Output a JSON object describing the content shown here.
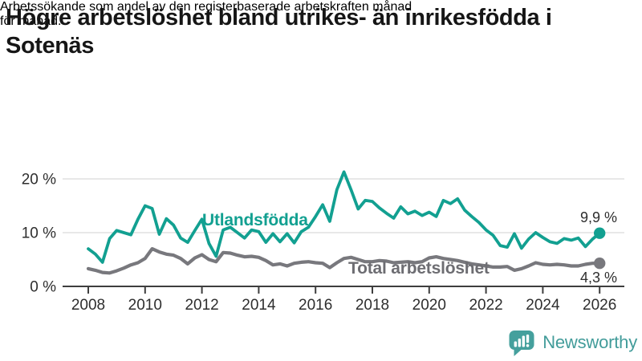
{
  "header": {
    "title": "Högre arbetslöshet bland utrikes- än inrikesfödda i Sotenäs",
    "title_lines": [
      "Högre arbetslöshet bland utrikes- än inrikesfödda i",
      "Sotenäs"
    ],
    "subtitle": "Arbetssökande som andel av den registerbaserade arbetskraften månad för månad.",
    "subtitle_lines": [
      "Arbetssökande som andel av den registerbaserade arbetskraften månad",
      "för månad."
    ]
  },
  "chart_data": {
    "type": "line",
    "title": "Högre arbetslöshet bland utrikes- än inrikesfödda i Sotenäs",
    "subtitle": "Arbetssökande som andel av den registerbaserade arbetskraften månad för månad.",
    "grid": true,
    "legend_position": "inline-labels",
    "x_axis": {
      "unit": "year",
      "tick_years": [
        2008,
        2010,
        2012,
        2014,
        2016,
        2018,
        2020,
        2022,
        2024,
        2026
      ],
      "range_years": [
        2007.1,
        2026.9
      ]
    },
    "y_axis": {
      "unit": "%",
      "ticks": [
        0,
        10,
        20
      ],
      "tick_labels": [
        "0 %",
        "10 %",
        "20 %"
      ],
      "range": [
        0,
        22
      ]
    },
    "x_start_year": 2008.0,
    "x_step_years": 0.25,
    "series": [
      {
        "name": "Utlandsfödda",
        "color": "#12a091",
        "end_value": 9.9,
        "end_label": "9,9 %",
        "values": [
          7.0,
          6.0,
          4.5,
          8.9,
          10.4,
          10.0,
          9.6,
          12.5,
          15.0,
          14.5,
          9.7,
          12.6,
          11.4,
          9.0,
          8.2,
          10.4,
          12.5,
          8.0,
          5.6,
          10.5,
          11.0,
          10.0,
          9.0,
          10.5,
          10.2,
          8.2,
          9.8,
          8.3,
          9.8,
          8.1,
          10.2,
          11.0,
          13.0,
          15.2,
          12.1,
          18.0,
          21.3,
          18.0,
          14.4,
          16.0,
          15.8,
          14.6,
          13.6,
          12.7,
          14.8,
          13.5,
          14.0,
          13.2,
          13.8,
          13.0,
          16.0,
          15.4,
          16.3,
          14.2,
          13.0,
          11.9,
          10.5,
          9.5,
          7.6,
          7.3,
          9.8,
          7.1,
          8.8,
          10.0,
          9.1,
          8.3,
          8.0,
          8.9,
          8.6,
          9.0,
          7.4,
          8.8,
          9.9
        ]
      },
      {
        "name": "Total arbetslöshet",
        "color": "#78787d",
        "label_color": "#6d6d72",
        "end_value": 4.3,
        "end_label": "4,3 %",
        "values": [
          3.3,
          3.0,
          2.6,
          2.5,
          2.9,
          3.4,
          4.0,
          4.4,
          5.2,
          7.0,
          6.4,
          6.0,
          5.8,
          5.2,
          4.2,
          5.3,
          5.9,
          5.0,
          4.6,
          6.3,
          6.2,
          5.8,
          5.5,
          5.6,
          5.4,
          4.8,
          4.0,
          4.2,
          3.8,
          4.3,
          4.5,
          4.6,
          4.4,
          4.3,
          3.5,
          4.4,
          5.2,
          5.4,
          5.0,
          4.6,
          4.6,
          4.8,
          4.7,
          4.4,
          4.5,
          4.6,
          4.4,
          4.6,
          5.3,
          5.5,
          5.2,
          5.0,
          4.8,
          4.5,
          4.2,
          4.0,
          3.8,
          3.6,
          3.6,
          3.7,
          3.0,
          3.3,
          3.8,
          4.4,
          4.1,
          4.0,
          4.1,
          4.0,
          3.8,
          3.8,
          4.1,
          4.3,
          4.3
        ]
      }
    ]
  },
  "footer": {
    "brand_name": "Newsworthy"
  },
  "theme": {
    "teal": "#12a091",
    "gray": "#78787d",
    "axis_color": "#3e3e3e",
    "grid_color": "#e0e0e0",
    "tick_text_color": "#2e2e2e",
    "logo_teal": "#45a09d"
  }
}
